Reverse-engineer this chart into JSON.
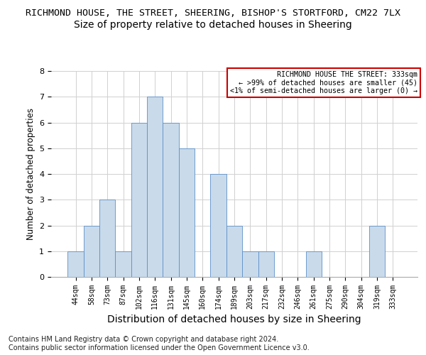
{
  "title_line1": "RICHMOND HOUSE, THE STREET, SHEERING, BISHOP'S STORTFORD, CM22 7LX",
  "title_line2": "Size of property relative to detached houses in Sheering",
  "xlabel": "Distribution of detached houses by size in Sheering",
  "ylabel": "Number of detached properties",
  "categories": [
    "44sqm",
    "58sqm",
    "73sqm",
    "87sqm",
    "102sqm",
    "116sqm",
    "131sqm",
    "145sqm",
    "160sqm",
    "174sqm",
    "189sqm",
    "203sqm",
    "217sqm",
    "232sqm",
    "246sqm",
    "261sqm",
    "275sqm",
    "290sqm",
    "304sqm",
    "319sqm",
    "333sqm"
  ],
  "values": [
    1,
    2,
    3,
    1,
    6,
    7,
    6,
    5,
    0,
    4,
    2,
    1,
    1,
    0,
    0,
    1,
    0,
    0,
    0,
    2,
    0
  ],
  "bar_color": "#c9daea",
  "bar_edge_color": "#5b8fc9",
  "highlight_bar_index": 20,
  "annotation_box_text": "RICHMOND HOUSE THE STREET: 333sqm\n← >99% of detached houses are smaller (45)\n<1% of semi-detached houses are larger (0) →",
  "annotation_box_edge_color": "#cc0000",
  "ylim": [
    0,
    8
  ],
  "yticks": [
    0,
    1,
    2,
    3,
    4,
    5,
    6,
    7,
    8
  ],
  "footer": "Contains HM Land Registry data © Crown copyright and database right 2024.\nContains public sector information licensed under the Open Government Licence v3.0.",
  "bg_color": "#ffffff",
  "grid_color": "#d0d0d0"
}
